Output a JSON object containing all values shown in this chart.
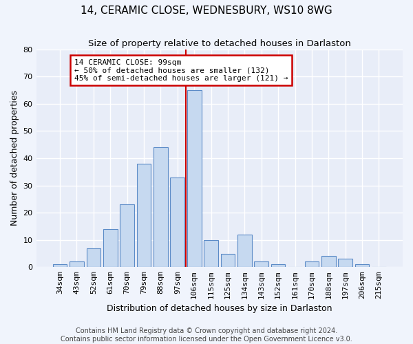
{
  "title": "14, CERAMIC CLOSE, WEDNESBURY, WS10 8WG",
  "subtitle": "Size of property relative to detached houses in Darlaston",
  "xlabel": "Distribution of detached houses by size in Darlaston",
  "ylabel": "Number of detached properties",
  "footer_line1": "Contains HM Land Registry data © Crown copyright and database right 2024.",
  "footer_line2": "Contains public sector information licensed under the Open Government Licence v3.0.",
  "categories": [
    "34sqm",
    "43sqm",
    "52sqm",
    "61sqm",
    "70sqm",
    "79sqm",
    "88sqm",
    "97sqm",
    "106sqm",
    "115sqm",
    "125sqm",
    "134sqm",
    "143sqm",
    "152sqm",
    "161sqm",
    "170sqm",
    "188sqm",
    "197sqm",
    "206sqm",
    "215sqm"
  ],
  "values": [
    1,
    2,
    7,
    14,
    23,
    38,
    44,
    33,
    65,
    10,
    5,
    12,
    2,
    1,
    0,
    2,
    4,
    3,
    1,
    0
  ],
  "bar_color": "#c6d9f0",
  "bar_edge_color": "#5b8bc7",
  "plot_bg_color": "#e8edf8",
  "fig_bg_color": "#f0f4fc",
  "grid_color": "#ffffff",
  "vline_color": "#cc0000",
  "vline_x_idx": 7.5,
  "annotation_text": "14 CERAMIC CLOSE: 99sqm\n← 50% of detached houses are smaller (132)\n45% of semi-detached houses are larger (121) →",
  "annotation_box_edge_color": "#cc0000",
  "annotation_box_face_color": "#ffffff",
  "ylim": [
    0,
    80
  ],
  "yticks": [
    0,
    10,
    20,
    30,
    40,
    50,
    60,
    70,
    80
  ],
  "title_fontsize": 11,
  "subtitle_fontsize": 9.5,
  "ylabel_fontsize": 9,
  "xlabel_fontsize": 9,
  "tick_fontsize": 8,
  "footer_fontsize": 7,
  "annotation_fontsize": 8
}
